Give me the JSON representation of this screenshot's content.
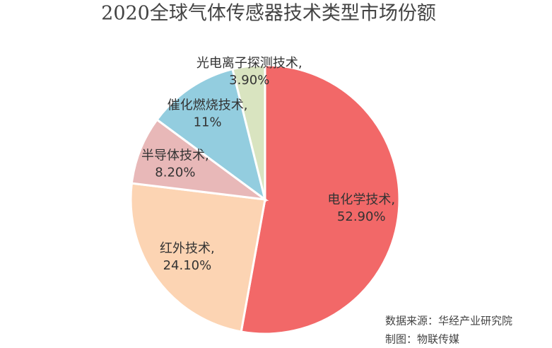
{
  "chart_data": {
    "type": "pie",
    "title": "2020全球气体传感器技术类型市场份额",
    "categories": [
      "电化学技术,",
      "红外技术,",
      "半导体技术,",
      "催化燃烧技术,",
      "光电离子探测技术,"
    ],
    "values": [
      52.9,
      24.1,
      8.2,
      11,
      3.9
    ],
    "value_labels": [
      "52.90%",
      "24.10%",
      "8.20%",
      "11%",
      "3.90%"
    ],
    "colors": [
      "#f26868",
      "#fcd4b3",
      "#e8b8b8",
      "#93cddf",
      "#d9e4c0"
    ],
    "notes": [
      "数据来源：华经产业研究院",
      "制图：物联传媒"
    ]
  }
}
